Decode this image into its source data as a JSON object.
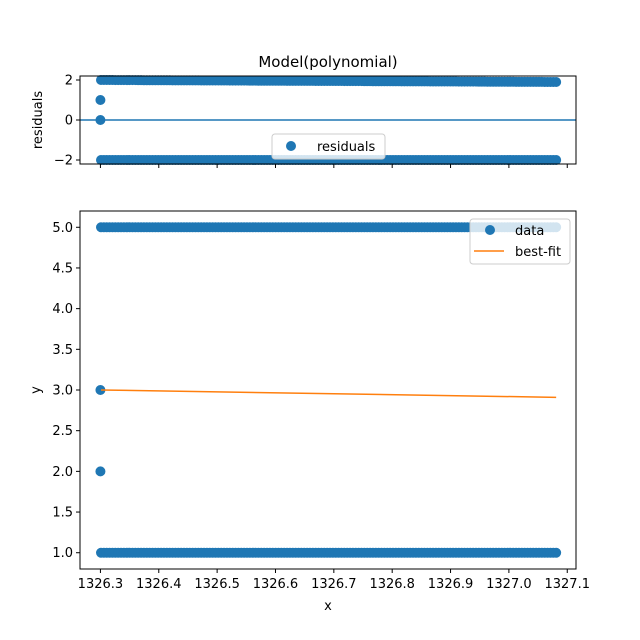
{
  "chart_data": [
    {
      "type": "scatter",
      "panel": "residuals",
      "title": "Model(polynomial)",
      "xlabel": "",
      "ylabel": "residuals",
      "xlim": [
        1326.265,
        1327.115
      ],
      "ylim": [
        -2.2,
        2.2
      ],
      "yticks": [
        -2,
        0,
        2
      ],
      "yticklabels": [
        "−2",
        "0",
        "2"
      ],
      "xticks": [
        1326.3,
        1326.4,
        1326.5,
        1326.6,
        1326.7,
        1326.8,
        1326.9,
        1327.0,
        1327.1
      ],
      "hline": 0,
      "legend": {
        "placement": "lower-center",
        "entries": [
          "residuals"
        ]
      },
      "series": [
        {
          "name": "residuals",
          "color": "#1f77b4",
          "x_range": [
            1326.301,
            1327.081
          ],
          "upper_band": [
            [
              1326.301,
              2.0
            ],
            [
              1327.081,
              1.9
            ]
          ],
          "lower_band": [
            [
              1326.301,
              -2.0
            ],
            [
              1327.081,
              -2.0
            ]
          ],
          "isolated_points": [
            [
              1326.3,
              1.0
            ],
            [
              1326.3,
              0.0
            ]
          ]
        }
      ]
    },
    {
      "type": "scatter",
      "panel": "fit",
      "xlabel": "x",
      "ylabel": "y",
      "xlim": [
        1326.265,
        1327.115
      ],
      "ylim": [
        0.8,
        5.2
      ],
      "yticks": [
        1.0,
        1.5,
        2.0,
        2.5,
        3.0,
        3.5,
        4.0,
        4.5,
        5.0
      ],
      "yticklabels": [
        "1.0",
        "1.5",
        "2.0",
        "2.5",
        "3.0",
        "3.5",
        "4.0",
        "4.5",
        "5.0"
      ],
      "xticks": [
        1326.3,
        1326.4,
        1326.5,
        1326.6,
        1326.7,
        1326.8,
        1326.9,
        1327.0,
        1327.1
      ],
      "xticklabels": [
        "1326.3",
        "1326.4",
        "1326.5",
        "1326.6",
        "1326.7",
        "1326.8",
        "1326.9",
        "1327.0",
        "1327.1"
      ],
      "legend": {
        "placement": "upper-right",
        "entries": [
          "data",
          "best-fit"
        ]
      },
      "series": [
        {
          "name": "data",
          "color": "#1f77b4",
          "x_range": [
            1326.301,
            1327.081
          ],
          "upper_band": [
            [
              1326.301,
              5.0
            ],
            [
              1327.081,
              5.0
            ]
          ],
          "lower_band": [
            [
              1326.301,
              1.0
            ],
            [
              1327.081,
              1.0
            ]
          ],
          "isolated_points": [
            [
              1326.3,
              3.0
            ],
            [
              1326.3,
              2.0
            ]
          ]
        },
        {
          "name": "best-fit",
          "color": "#ff7f0e",
          "x": [
            1326.301,
            1327.081
          ],
          "y": [
            3.0,
            2.91
          ]
        }
      ]
    }
  ]
}
